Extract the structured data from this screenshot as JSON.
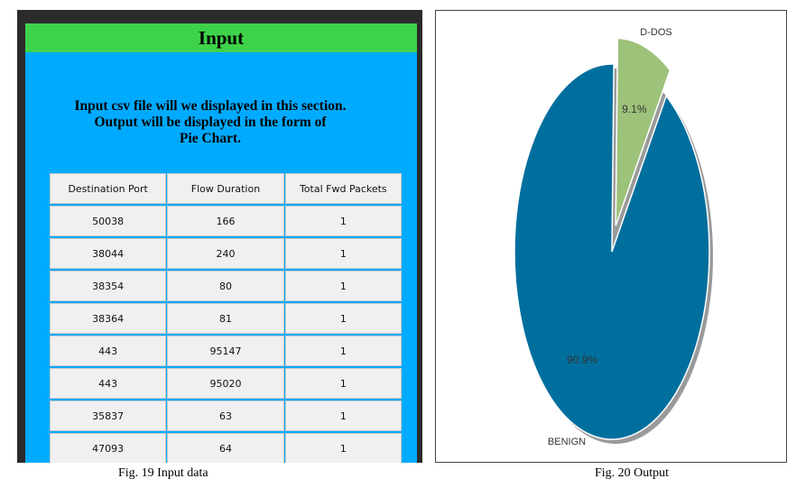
{
  "input_window": {
    "header": "Input",
    "intro_lines": [
      "Input csv file will we displayed in this section.",
      "Output will be displayed in the form of",
      "Pie Chart."
    ],
    "table": {
      "columns": [
        "Destination Port",
        "Flow Duration",
        "Total Fwd Packets"
      ],
      "rows": [
        [
          "50038",
          "166",
          "1"
        ],
        [
          "38044",
          "240",
          "1"
        ],
        [
          "38354",
          "80",
          "1"
        ],
        [
          "38364",
          "81",
          "1"
        ],
        [
          "443",
          "95147",
          "1"
        ],
        [
          "443",
          "95020",
          "1"
        ],
        [
          "35837",
          "63",
          "1"
        ],
        [
          "47093",
          "64",
          "1"
        ]
      ]
    }
  },
  "captions": {
    "fig19": "Fig. 19 Input data",
    "fig20": "Fig. 20 Output"
  },
  "chart_data": {
    "type": "pie",
    "categories": [
      "BENIGN",
      "D-DOS"
    ],
    "values": [
      90.9,
      9.1
    ],
    "data_labels": [
      "90.9%",
      "9.1%"
    ],
    "colors": [
      "#006f9e",
      "#9dc27a"
    ],
    "exploded": "D-DOS"
  }
}
